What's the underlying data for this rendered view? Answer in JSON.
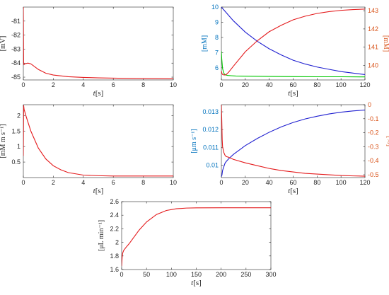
{
  "chart_data": [
    {
      "id": "p1",
      "type": "line",
      "xlabel_italic": "t",
      "xlabel_unit": "[s]",
      "ylabel": "[mV]",
      "xlim": [
        0,
        10
      ],
      "ylim": [
        -85.2,
        -80
      ],
      "xticks": [
        "0",
        "2",
        "4",
        "6",
        "8",
        "10"
      ],
      "xtick_values": [
        0,
        2,
        4,
        6,
        8,
        10
      ],
      "yticks": [
        "-85",
        "-84",
        "-83",
        "-82",
        "-81"
      ],
      "ytick_values": [
        -85,
        -84,
        -83,
        -82,
        -81
      ],
      "series": [
        {
          "color": "#e41a1c",
          "x": [
            0,
            0.02,
            0.05,
            0.1,
            0.3,
            0.5,
            1,
            1.5,
            2,
            3,
            4,
            5,
            6,
            7,
            8,
            9,
            10
          ],
          "y": [
            -80,
            -84,
            -84.1,
            -84.05,
            -84,
            -84.05,
            -84.45,
            -84.72,
            -84.85,
            -84.97,
            -85.02,
            -85.05,
            -85.07,
            -85.09,
            -85.1,
            -85.11,
            -85.12
          ]
        }
      ]
    },
    {
      "id": "p2",
      "type": "line",
      "xlabel_italic": "t",
      "xlabel_unit": "[s]",
      "ylabel": "[mM]",
      "ylabel_color": "#0072bd",
      "ylabel_right": "[mM]",
      "ylabel_right_color": "#d95319",
      "xlim": [
        0,
        120
      ],
      "ylim": [
        5.2,
        10
      ],
      "ylim_right": [
        139.2,
        143.2
      ],
      "xticks": [
        "0",
        "20",
        "40",
        "60",
        "80",
        "100",
        "120"
      ],
      "xtick_values": [
        0,
        20,
        40,
        60,
        80,
        100,
        120
      ],
      "yticks": [
        "6",
        "7",
        "8",
        "9",
        "10"
      ],
      "ytick_values": [
        6,
        7,
        8,
        9,
        10
      ],
      "yticks_right": [
        "140",
        "141",
        "142",
        "143"
      ],
      "ytick_values_right": [
        140,
        141,
        142,
        143
      ],
      "series": [
        {
          "color": "#1f1fd0",
          "axis": "left",
          "x": [
            0,
            10,
            20,
            30,
            40,
            50,
            60,
            70,
            80,
            90,
            100,
            110,
            120
          ],
          "y": [
            10,
            9.1,
            8.35,
            7.75,
            7.25,
            6.85,
            6.5,
            6.25,
            6.05,
            5.9,
            5.75,
            5.65,
            5.55
          ]
        },
        {
          "color": "#00c800",
          "axis": "left",
          "x": [
            0,
            0.3,
            1,
            2,
            3,
            5,
            8,
            12,
            20,
            40,
            60,
            80,
            100,
            120
          ],
          "y": [
            7.1,
            6.6,
            5.95,
            5.65,
            5.55,
            5.5,
            5.48,
            5.46,
            5.45,
            5.43,
            5.42,
            5.41,
            5.41,
            5.4
          ]
        },
        {
          "color": "#e41a1c",
          "axis": "right",
          "x": [
            0,
            0.5,
            1,
            2,
            3,
            4,
            6,
            10,
            20,
            30,
            40,
            50,
            60,
            70,
            80,
            90,
            100,
            110,
            120
          ],
          "y": [
            139.7,
            139.55,
            139.5,
            139.48,
            139.47,
            139.5,
            139.62,
            139.95,
            140.75,
            141.35,
            141.85,
            142.2,
            142.5,
            142.7,
            142.85,
            142.95,
            143.02,
            143.06,
            143.09
          ]
        }
      ]
    },
    {
      "id": "p3",
      "type": "line",
      "xlabel_italic": "t",
      "xlabel_unit": "[s]",
      "ylabel": "[mM m s⁻¹]",
      "xlim": [
        0,
        10
      ],
      "ylim": [
        0,
        2.35
      ],
      "xticks": [
        "0",
        "2",
        "4",
        "6",
        "8",
        "10"
      ],
      "xtick_values": [
        0,
        2,
        4,
        6,
        8,
        10
      ],
      "yticks": [
        "0.5",
        "1",
        "1.5",
        "2"
      ],
      "ytick_values": [
        0.5,
        1,
        1.5,
        2
      ],
      "series": [
        {
          "color": "#e41a1c",
          "x": [
            0,
            0.02,
            0.05,
            0.2,
            0.5,
            1,
            1.5,
            2,
            2.5,
            3,
            4,
            5,
            6,
            7,
            8,
            9,
            10
          ],
          "y": [
            0.7,
            2.33,
            2.2,
            1.95,
            1.5,
            0.95,
            0.6,
            0.38,
            0.25,
            0.16,
            0.08,
            0.06,
            0.05,
            0.05,
            0.05,
            0.05,
            0.05
          ]
        }
      ]
    },
    {
      "id": "p4",
      "type": "line",
      "xlabel_italic": "t",
      "xlabel_unit": "[s]",
      "ylabel": "[μm s⁻¹]",
      "ylabel_color": "#0072bd",
      "ylabel_right": "[%]",
      "ylabel_right_color": "#d95319",
      "xlim": [
        0,
        120
      ],
      "ylim": [
        0.0093,
        0.0134
      ],
      "ylim_right": [
        -0.52,
        0
      ],
      "xticks": [
        "0",
        "20",
        "40",
        "60",
        "80",
        "100",
        "120"
      ],
      "xtick_values": [
        0,
        20,
        40,
        60,
        80,
        100,
        120
      ],
      "yticks": [
        "0.01",
        "0.011",
        "0.012",
        "0.013"
      ],
      "ytick_values": [
        0.01,
        0.011,
        0.012,
        0.013
      ],
      "yticks_right": [
        "-0.5",
        "-0.4",
        "-0.3",
        "-0.2",
        "-0.1",
        "0"
      ],
      "ytick_values_right": [
        -0.5,
        -0.4,
        -0.3,
        -0.2,
        -0.1,
        0
      ],
      "series": [
        {
          "color": "#1f1fd0",
          "axis": "left",
          "x": [
            0,
            0.5,
            1,
            2,
            3,
            4,
            6,
            10,
            20,
            30,
            40,
            50,
            60,
            70,
            80,
            90,
            100,
            110,
            120
          ],
          "y": [
            0.00935,
            0.00945,
            0.0097,
            0.0099,
            0.0101,
            0.0102,
            0.01035,
            0.0106,
            0.0111,
            0.0115,
            0.01185,
            0.01215,
            0.0124,
            0.0126,
            0.01275,
            0.01288,
            0.01298,
            0.01305,
            0.0131
          ]
        },
        {
          "color": "#e41a1c",
          "axis": "right",
          "x": [
            0,
            0.3,
            0.7,
            1,
            2,
            3,
            4,
            6,
            10,
            20,
            30,
            40,
            50,
            60,
            70,
            80,
            90,
            100,
            110,
            120
          ],
          "y": [
            0,
            -0.1,
            -0.25,
            -0.3,
            -0.34,
            -0.36,
            -0.37,
            -0.375,
            -0.39,
            -0.415,
            -0.435,
            -0.455,
            -0.47,
            -0.48,
            -0.49,
            -0.495,
            -0.5,
            -0.505,
            -0.508,
            -0.51
          ]
        }
      ]
    },
    {
      "id": "p5",
      "type": "line",
      "xlabel_italic": "t",
      "xlabel_unit": "[s]",
      "ylabel": "[μL min⁻¹]",
      "xlim": [
        0,
        300
      ],
      "ylim": [
        1.6,
        2.6
      ],
      "xticks": [
        "0",
        "50",
        "100",
        "150",
        "200",
        "250",
        "300"
      ],
      "xtick_values": [
        0,
        50,
        100,
        150,
        200,
        250,
        300
      ],
      "yticks": [
        "1.6",
        "1.8",
        "2",
        "2.2",
        "2.4",
        "2.6"
      ],
      "ytick_values": [
        1.6,
        1.8,
        2,
        2.2,
        2.4,
        2.6
      ],
      "series": [
        {
          "color": "#e41a1c",
          "x": [
            0,
            1,
            2,
            4,
            8,
            15,
            25,
            35,
            50,
            70,
            90,
            110,
            130,
            150,
            200,
            250,
            300
          ],
          "y": [
            1.65,
            1.78,
            1.84,
            1.88,
            1.92,
            1.98,
            2.08,
            2.18,
            2.3,
            2.41,
            2.47,
            2.495,
            2.505,
            2.508,
            2.51,
            2.51,
            2.51
          ]
        }
      ]
    }
  ]
}
